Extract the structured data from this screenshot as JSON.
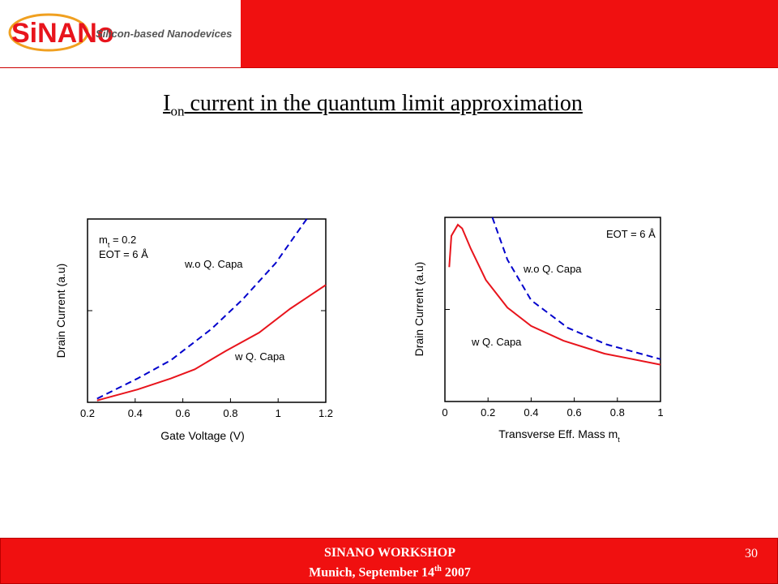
{
  "header": {
    "brand": "SiNANo",
    "tagline": "Silicon-based Nanodevices"
  },
  "title": [
    "I",
    "on",
    " current in the quantum limit approximation"
  ],
  "chart_data": [
    {
      "type": "line",
      "ylabel": "Drain Current (a.u)",
      "xlabel": [
        "Gate Voltage (V)"
      ],
      "xlim": [
        0.2,
        1.2
      ],
      "xticks": [
        0.2,
        0.4,
        0.6,
        0.8,
        1,
        1.2
      ],
      "ylim": [
        0,
        1
      ],
      "annotations": [
        [
          "m",
          "t",
          " = 0.2"
        ],
        [
          "EOT = 6 Å"
        ]
      ],
      "series": [
        {
          "name": "w.o Q. Capa",
          "color": "#0000cc",
          "dashed": true,
          "x": [
            0.24,
            0.41,
            0.55,
            0.72,
            0.85,
            0.99,
            1.12
          ],
          "values": [
            0.02,
            0.13,
            0.23,
            0.4,
            0.56,
            0.76,
            1.0
          ]
        },
        {
          "name": "w Q. Capa",
          "color": "#e8141c",
          "dashed": false,
          "x": [
            0.24,
            0.41,
            0.55,
            0.65,
            0.78,
            0.92,
            1.05,
            1.2
          ],
          "values": [
            0.01,
            0.07,
            0.13,
            0.18,
            0.28,
            0.38,
            0.51,
            0.64
          ]
        }
      ]
    },
    {
      "type": "line",
      "ylabel": "Drain Current (a.u)",
      "xlabel": [
        "Transverse Eff. Mass m",
        "t"
      ],
      "xlim": [
        0,
        1
      ],
      "xticks": [
        0,
        0.2,
        0.4,
        0.6,
        0.8,
        1
      ],
      "ylim": [
        0,
        1
      ],
      "annotations": [
        [
          "EOT = 6 Å"
        ]
      ],
      "series": [
        {
          "name": "w.o Q. Capa",
          "color": "#0000cc",
          "dashed": true,
          "x": [
            0.22,
            0.29,
            0.4,
            0.57,
            0.75,
            1.0
          ],
          "values": [
            1.0,
            0.77,
            0.55,
            0.4,
            0.31,
            0.23
          ]
        },
        {
          "name": "w Q. Capa",
          "color": "#e8141c",
          "dashed": false,
          "x": [
            0.02,
            0.03,
            0.06,
            0.08,
            0.12,
            0.19,
            0.29,
            0.4,
            0.55,
            0.74,
            1.0
          ],
          "values": [
            0.73,
            0.9,
            0.96,
            0.94,
            0.83,
            0.66,
            0.51,
            0.41,
            0.33,
            0.26,
            0.2
          ]
        }
      ]
    }
  ],
  "footer": {
    "event": "SINANO WORKSHOP",
    "date": [
      "Munich, September 14",
      "th",
      " 2007"
    ],
    "page": "30"
  }
}
